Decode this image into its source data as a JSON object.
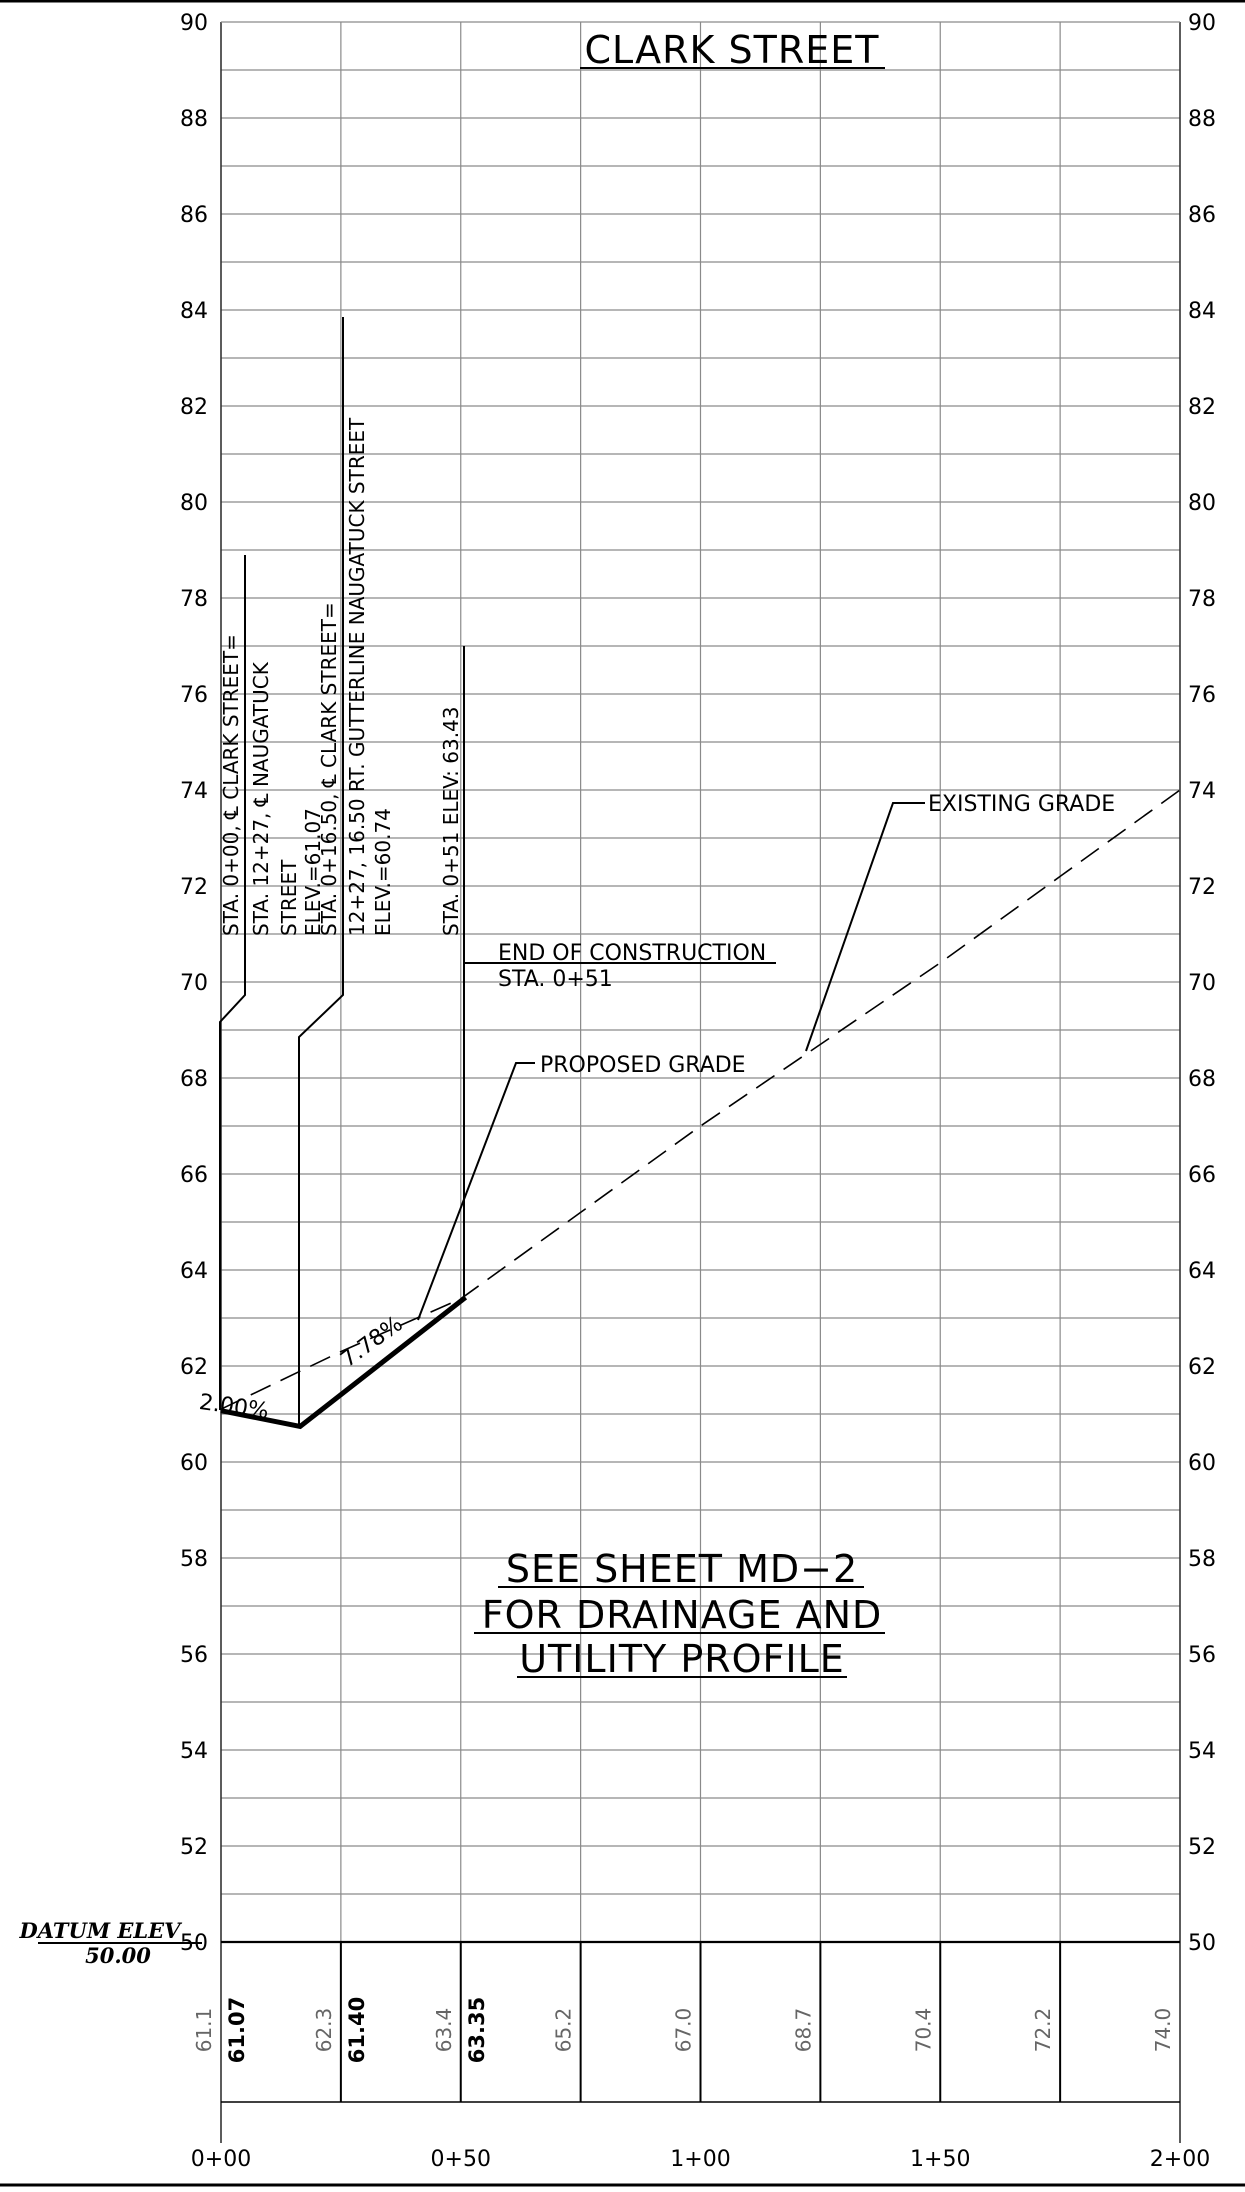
{
  "title": "CLARK STREET",
  "datum": {
    "label": "DATUM ELEV",
    "value": "50.00"
  },
  "axis": {
    "y_labels": [
      "90",
      "88",
      "86",
      "84",
      "82",
      "80",
      "78",
      "76",
      "74",
      "72",
      "70",
      "68",
      "66",
      "64",
      "62",
      "60",
      "58",
      "56",
      "54",
      "52",
      "50"
    ],
    "x_labels": [
      "0+00",
      "0+50",
      "1+00",
      "1+50",
      "2+00"
    ]
  },
  "notes": {
    "sta1_line1": "STA. 0+00, ℄ CLARK STREET=",
    "sta1_line2": "STA. 12+27, ℄ NAUGATUCK",
    "sta1_line3": "STREET",
    "sta1_line4": "ELEV.=61.07",
    "sta2_line1": "STA. 0+16.50, ℄ CLARK STREET=",
    "sta2_line2": "12+27, 16.50 RT. GUTTERLINE NAUGATUCK STREET",
    "sta2_line3": "ELEV.=60.74",
    "sta3_line1": "STA. 0+51 ELEV: 63.43",
    "end_line1": "END OF CONSTRUCTION",
    "end_line2": "STA. 0+51",
    "proposed_grade": "PROPOSED GRADE",
    "existing_grade": "EXISTING GRADE",
    "grade1": "2.00%",
    "grade2": "7.78%",
    "see_line1": "SEE SHEET MD−2",
    "see_line2": "FOR DRAINAGE AND",
    "see_line3": "UTILITY PROFILE"
  },
  "elevations": {
    "existing": [
      "61.1",
      "62.3",
      "63.4",
      "65.2",
      "67.0",
      "68.7",
      "70.4",
      "72.2",
      "74.0"
    ],
    "proposed": [
      "61.07",
      "61.40",
      "63.35"
    ]
  },
  "chart_data": {
    "type": "line",
    "title": "CLARK STREET",
    "xlabel": "",
    "ylabel": "",
    "xlim": [
      0,
      200
    ],
    "ylim": [
      50,
      90
    ],
    "series": [
      {
        "name": "PROPOSED GRADE",
        "x": [
          0,
          16.5,
          51
        ],
        "y": [
          61.07,
          60.74,
          63.43
        ]
      },
      {
        "name": "EXISTING GRADE",
        "x": [
          0,
          25,
          50,
          75,
          100,
          125,
          150,
          175,
          200
        ],
        "y": [
          61.1,
          62.3,
          63.4,
          65.2,
          67.0,
          68.7,
          70.4,
          72.2,
          74.0
        ]
      }
    ]
  }
}
